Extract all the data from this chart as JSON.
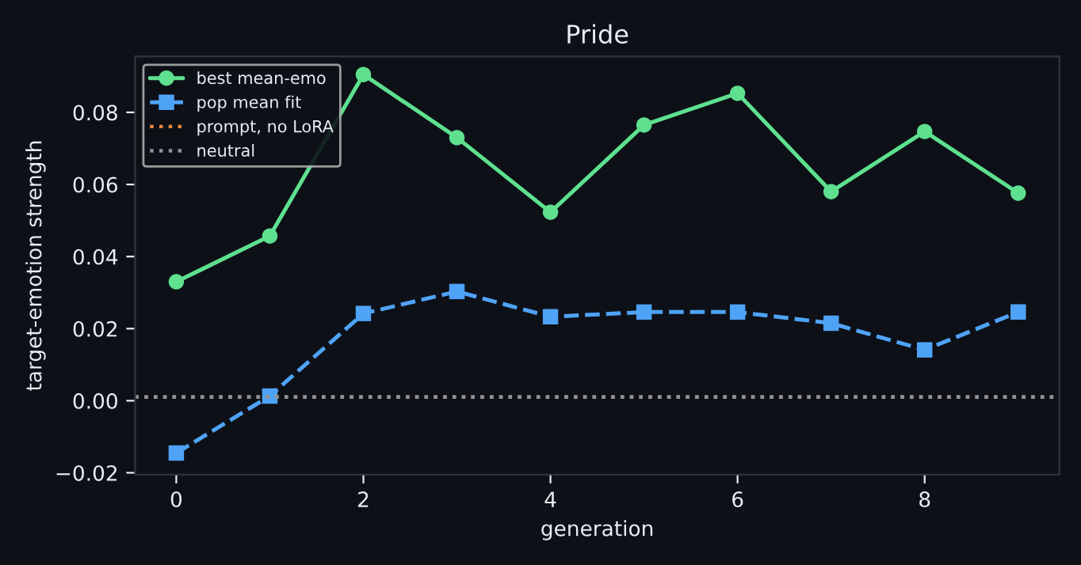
{
  "chart_data": {
    "type": "line",
    "title": "Pride",
    "xlabel": "generation",
    "ylabel": "target-emotion strength",
    "x": [
      0,
      1,
      2,
      3,
      4,
      5,
      6,
      7,
      8,
      9
    ],
    "series": [
      {
        "name": "best mean-emo",
        "color": "#5ee08f",
        "marker": "circle",
        "line_style": "solid",
        "values": [
          0.033,
          0.0457,
          0.0905,
          0.073,
          0.0523,
          0.0765,
          0.0853,
          0.058,
          0.0747,
          0.0576
        ]
      },
      {
        "name": "pop mean fit",
        "color": "#4fa3f7",
        "marker": "square",
        "line_style": "dashed",
        "values": [
          -0.0145,
          0.0013,
          0.0242,
          0.0303,
          0.0233,
          0.0246,
          0.0246,
          0.0215,
          0.0141,
          0.0246
        ]
      }
    ],
    "ref_lines": [
      {
        "axis": "y",
        "value": 0.001,
        "label": "prompt, no LoRA",
        "color": "#f0883e",
        "line_style": "dotted"
      },
      {
        "axis": "y",
        "value": 0.001,
        "label": "neutral",
        "color": "#8b949e",
        "line_style": "dotted"
      }
    ],
    "xlim": [
      -0.44,
      9.44
    ],
    "ylim": [
      -0.0205,
      0.0955
    ],
    "xticks": [
      0,
      2,
      4,
      6,
      8
    ],
    "yticks": [
      {
        "value": -0.02,
        "label": "−0.02"
      },
      {
        "value": 0.0,
        "label": "0.00"
      },
      {
        "value": 0.02,
        "label": "0.02"
      },
      {
        "value": 0.04,
        "label": "0.04"
      },
      {
        "value": 0.06,
        "label": "0.06"
      },
      {
        "value": 0.08,
        "label": "0.08"
      }
    ],
    "grid": false,
    "legend": "top left"
  }
}
